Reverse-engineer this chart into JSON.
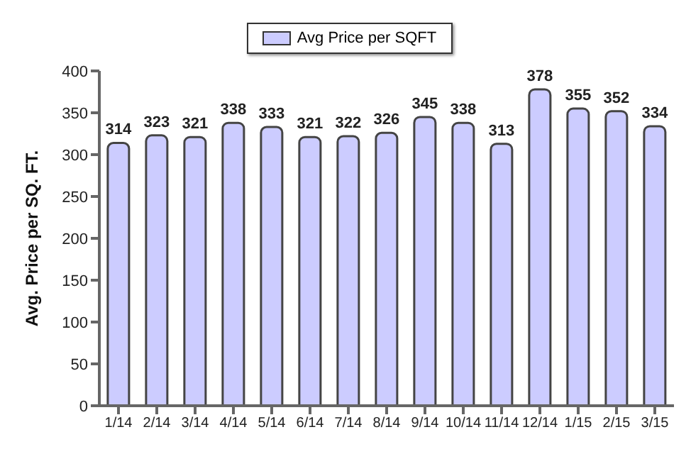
{
  "chart_data": {
    "type": "bar",
    "ylabel": "Avg. Price per SQ. FT.",
    "categories": [
      "1/14",
      "2/14",
      "3/14",
      "4/14",
      "5/14",
      "6/14",
      "7/14",
      "8/14",
      "9/14",
      "10/14",
      "11/14",
      "12/14",
      "1/15",
      "2/15",
      "3/15"
    ],
    "series": [
      {
        "name": "Avg Price per SQFT",
        "color": "#ccccff",
        "values": [
          314,
          323,
          321,
          338,
          333,
          321,
          322,
          326,
          345,
          338,
          313,
          378,
          355,
          352,
          334
        ]
      }
    ],
    "ylim": [
      0,
      400
    ],
    "yticks": [
      0,
      50,
      100,
      150,
      200,
      250,
      300,
      350,
      400
    ],
    "grid": false,
    "legend": "top",
    "data_labels": true
  }
}
